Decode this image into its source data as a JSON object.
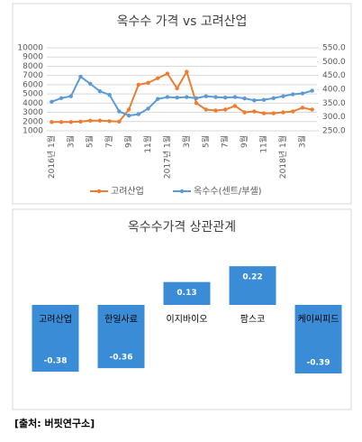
{
  "chart_data": [
    {
      "type": "line",
      "title": "옥수수 가격 vs 고려산업",
      "categories": [
        "2016년 1월",
        null,
        "3월",
        null,
        "5월",
        null,
        "7월",
        null,
        "9월",
        null,
        "11월",
        null,
        "2017년 1월",
        null,
        "3월",
        null,
        "5월",
        null,
        "7월",
        null,
        "9월",
        null,
        "11월",
        null,
        "2018년 1월",
        null,
        "3월",
        null
      ],
      "series": [
        {
          "name": "고려산업",
          "color": "#ed7d31",
          "values": [
            1950,
            1950,
            1950,
            2000,
            2100,
            2100,
            2050,
            2000,
            3300,
            6000,
            6200,
            6700,
            7200,
            5600,
            7400,
            4000,
            3300,
            3200,
            3300,
            3700,
            3000,
            3100,
            2900,
            2900,
            3000,
            3100,
            3500,
            3300
          ]
        },
        {
          "name": "옥수수(센트/부셸)",
          "color": "#5b9bd5",
          "axis": "y2",
          "values": [
            355,
            368,
            375,
            446,
            420,
            393,
            380,
            320,
            305,
            310,
            330,
            365,
            372,
            370,
            372,
            368,
            375,
            372,
            370,
            372,
            367,
            360,
            362,
            368,
            375,
            382,
            385,
            395
          ]
        }
      ],
      "ylim": [
        1000,
        10000
      ],
      "yticks": [
        1000,
        2000,
        3000,
        4000,
        5000,
        6000,
        7000,
        8000,
        9000,
        10000
      ],
      "y2lim": [
        250,
        550
      ],
      "y2ticks": [
        {
          "value": 250,
          "label": "250.0"
        },
        {
          "value": 300,
          "label": "300.0"
        },
        {
          "value": 350,
          "label": "350.0"
        },
        {
          "value": 400,
          "label": "400.0"
        },
        {
          "value": 450,
          "label": "450.0"
        },
        {
          "value": 500,
          "label": "500.0"
        },
        {
          "value": 550,
          "label": "550.0"
        }
      ],
      "grid": true,
      "legend": "bottom"
    },
    {
      "type": "bar",
      "title": "옥수수가격 상관관계",
      "categories": [
        "고려산업",
        "한일사료",
        "이지바이오",
        "팜스코",
        "케이씨피드"
      ],
      "values": [
        -0.38,
        -0.36,
        0.13,
        0.22,
        -0.39
      ],
      "color": "#3a8cd6"
    }
  ],
  "source": "[출처: 버핏연구소]"
}
